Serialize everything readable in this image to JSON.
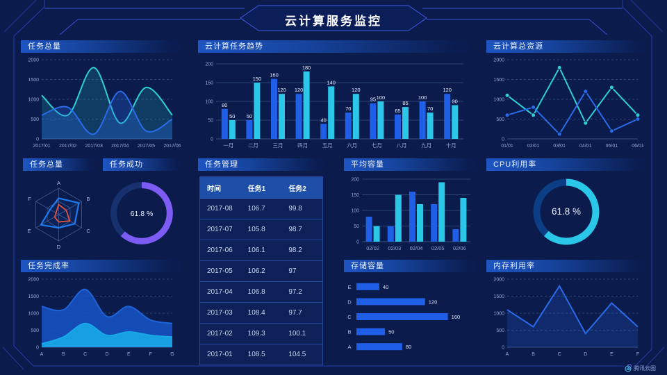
{
  "page": {
    "title": "云计算服务监控",
    "footer_logo": "腾讯云图"
  },
  "icons": {
    "footer_logo": "tencent-cloud-chart-logo"
  },
  "colors": {
    "background": "#0A1B4C",
    "frame": "#2B41BC",
    "header_line": "#3D50D8",
    "blue_series": "#1F5FE8",
    "cyan_bar": "#2BC7E8",
    "cyan_line": "#2ED0D4",
    "purple": "#7D5BF5",
    "tick_text": "#93A9D8"
  },
  "chart_data": [
    {
      "id": "task-total-trend",
      "type": "area",
      "title": "任务总量",
      "x": [
        "2017/01",
        "2017/02",
        "2017/03",
        "2017/04",
        "2017/05",
        "2017/06"
      ],
      "ylim": [
        0,
        2000
      ],
      "yticks": [
        0,
        500,
        1000,
        1500,
        2000
      ],
      "grid": "dashed",
      "series": [
        {
          "name": "cyan",
          "color": "#2ED0D4",
          "fill": "rgba(46,208,212,0.18)",
          "smooth": true,
          "values": [
            1100,
            600,
            1800,
            400,
            1300,
            600
          ]
        },
        {
          "name": "blue",
          "color": "#2A6BEA",
          "fill": "rgba(42,107,234,0.28)",
          "smooth": true,
          "values": [
            600,
            800,
            120,
            1200,
            200,
            500
          ]
        }
      ]
    },
    {
      "id": "cloud-task-trend",
      "type": "bar",
      "title": "云计算任务趋势",
      "categories": [
        "一月",
        "二月",
        "三月",
        "四月",
        "五月",
        "六月",
        "七月",
        "八月",
        "九月",
        "十月"
      ],
      "ylim": [
        0,
        200
      ],
      "yticks": [
        0,
        50,
        100,
        150,
        200
      ],
      "show_labels": true,
      "series": [
        {
          "name": "任务1",
          "color": "#1F5FE8",
          "values": [
            80,
            50,
            160,
            120,
            40,
            70,
            95,
            65,
            100,
            120
          ]
        },
        {
          "name": "任务2",
          "color": "#2BC7E8",
          "values": [
            50,
            150,
            120,
            180,
            140,
            120,
            100,
            85,
            70,
            90
          ]
        }
      ]
    },
    {
      "id": "cloud-total-resources",
      "type": "line",
      "title": "云计算总资源",
      "x": [
        "01/01",
        "02/01",
        "03/01",
        "04/01",
        "05/01",
        "06/01"
      ],
      "ylim": [
        0,
        2000
      ],
      "yticks": [
        0,
        500,
        1000,
        1500,
        2000
      ],
      "grid": "dashed",
      "markers": true,
      "series": [
        {
          "name": "cyan",
          "color": "#2ED0D4",
          "values": [
            1100,
            600,
            1800,
            400,
            1300,
            600
          ]
        },
        {
          "name": "blue",
          "color": "#2A6BEA",
          "values": [
            600,
            800,
            120,
            1200,
            200,
            500
          ]
        }
      ]
    },
    {
      "id": "task-radar",
      "type": "radar",
      "title": "任务总量",
      "axes": [
        "A",
        "B",
        "C",
        "D",
        "E",
        "F"
      ],
      "max": 100,
      "series": [
        {
          "name": "blue",
          "color": "#1F7AF0",
          "values": [
            62,
            88,
            70,
            50,
            78,
            38
          ]
        },
        {
          "name": "red",
          "color": "#E8503C",
          "values": [
            38,
            33,
            48,
            28,
            18,
            12
          ]
        }
      ]
    },
    {
      "id": "task-success",
      "type": "donut",
      "title": "任务成功",
      "value": 61.8,
      "label": "61.8 %",
      "color": "#7D5BF5",
      "track": "#17306E"
    },
    {
      "id": "task-management",
      "type": "table",
      "title": "任务管理",
      "columns": [
        "时间",
        "任务1",
        "任务2"
      ],
      "rows": [
        [
          "2017-08",
          "106.7",
          "99.8"
        ],
        [
          "2017-07",
          "105.8",
          "98.7"
        ],
        [
          "2017-06",
          "106.1",
          "98.2"
        ],
        [
          "2017-05",
          "106.2",
          "97"
        ],
        [
          "2017-04",
          "106.8",
          "97.2"
        ],
        [
          "2017-03",
          "108.4",
          "97.7"
        ],
        [
          "2017-02",
          "109.3",
          "100.1"
        ],
        [
          "2017-01",
          "108.5",
          "104.5"
        ]
      ]
    },
    {
      "id": "avg-capacity",
      "type": "bar",
      "title": "平均容量",
      "categories": [
        "02/02",
        "02/03",
        "02/04",
        "02/05",
        "02/06"
      ],
      "ylim": [
        0,
        200
      ],
      "yticks": [
        0,
        50,
        100,
        150,
        200
      ],
      "show_labels": false,
      "series": [
        {
          "name": "blue",
          "color": "#1F5FE8",
          "values": [
            80,
            50,
            160,
            120,
            40
          ]
        },
        {
          "name": "cyan",
          "color": "#2BC7E8",
          "values": [
            50,
            150,
            120,
            190,
            140
          ]
        }
      ]
    },
    {
      "id": "cpu-usage",
      "type": "donut",
      "title": "CPU利用率",
      "value": 61.8,
      "label": "61.8 %",
      "color": "#2BC7E8",
      "track": "#0C3E86"
    },
    {
      "id": "task-completion",
      "type": "area",
      "title": "任务完成率",
      "x": [
        "A",
        "B",
        "C",
        "D",
        "E",
        "F",
        "G"
      ],
      "ylim": [
        0,
        2000
      ],
      "yticks": [
        0,
        500,
        1000,
        1500,
        2000
      ],
      "grid": "dashed",
      "series": [
        {
          "name": "blue",
          "color": "#1E64D8",
          "fill": "rgba(22,84,200,0.85)",
          "smooth": true,
          "values": [
            1200,
            1100,
            1700,
            900,
            1200,
            800,
            700
          ]
        },
        {
          "name": "cyan",
          "color": "#17A9E8",
          "fill": "rgba(23,169,232,0.9)",
          "smooth": true,
          "values": [
            100,
            300,
            700,
            350,
            450,
            350,
            300
          ]
        }
      ]
    },
    {
      "id": "storage-capacity",
      "type": "hbar",
      "title": "存储容量",
      "categories": [
        "E",
        "D",
        "C",
        "B",
        "A"
      ],
      "values": [
        40,
        120,
        160,
        50,
        80
      ],
      "max": 175,
      "color": "#1F5FE8"
    },
    {
      "id": "memory-usage",
      "type": "line",
      "title": "内存利用率",
      "x": [
        "A",
        "B",
        "C",
        "D",
        "E",
        "F"
      ],
      "ylim": [
        0,
        2000
      ],
      "yticks": [
        0,
        500,
        1000,
        1500,
        2000
      ],
      "grid": "dashed",
      "series": [
        {
          "name": "blue",
          "color": "#2A6BEA",
          "fill": "rgba(42,107,234,0.20)",
          "values": [
            1100,
            600,
            1800,
            400,
            1300,
            600
          ]
        }
      ]
    }
  ]
}
